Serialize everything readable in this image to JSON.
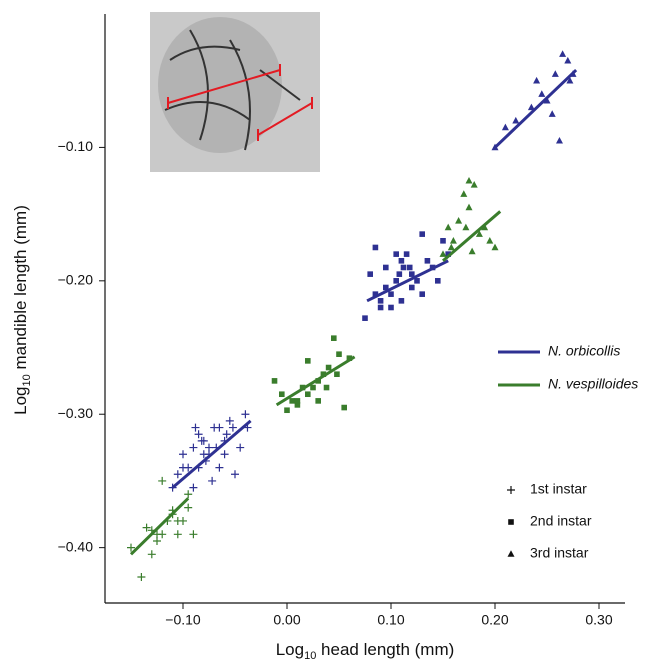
{
  "chart_data": {
    "type": "scatter",
    "xlabel": [
      "Log",
      "10",
      " head length (mm)"
    ],
    "ylabel": [
      "Log",
      "10",
      " mandible length (mm)"
    ],
    "xlim": [
      -0.175,
      0.325
    ],
    "ylim": [
      -0.44,
      0.0
    ],
    "xticks": [
      {
        "value": -0.1,
        "label": "−0.10"
      },
      {
        "value": 0.0,
        "label": "0.00"
      },
      {
        "value": 0.1,
        "label": "0.10"
      },
      {
        "value": 0.2,
        "label": "0.20"
      },
      {
        "value": 0.3,
        "label": "0.30"
      }
    ],
    "yticks": [
      {
        "value": -0.1,
        "label": "−0.10"
      },
      {
        "value": -0.2,
        "label": "−0.20"
      },
      {
        "value": -0.3,
        "label": "−0.30"
      },
      {
        "value": -0.4,
        "label": "−0.40"
      }
    ],
    "legend": {
      "lines": [
        {
          "name": "N. orbicollis",
          "color": "#2e3192"
        },
        {
          "name": "N. vespilloides",
          "color": "#3a7d2c"
        }
      ],
      "markers": [
        {
          "name": "1st instar",
          "marker": "plus"
        },
        {
          "name": "2nd instar",
          "marker": "square"
        },
        {
          "name": "3rd instar",
          "marker": "triangle"
        }
      ]
    },
    "series": [
      {
        "color": "#3a7d2c",
        "marker": "plus",
        "x": [
          -0.15,
          -0.14,
          -0.135,
          -0.13,
          -0.125,
          -0.12,
          -0.115,
          -0.11,
          -0.105,
          -0.1,
          -0.095,
          -0.09,
          -0.095,
          -0.12,
          -0.13,
          -0.105,
          -0.11,
          -0.125
        ],
        "y": [
          -0.4,
          -0.422,
          -0.385,
          -0.387,
          -0.395,
          -0.39,
          -0.38,
          -0.375,
          -0.38,
          -0.38,
          -0.37,
          -0.39,
          -0.36,
          -0.35,
          -0.405,
          -0.39,
          -0.372,
          -0.39
        ],
        "fit_x": [
          -0.15,
          -0.095
        ],
        "fit_y": [
          -0.405,
          -0.363
        ]
      },
      {
        "color": "#2e3192",
        "marker": "plus",
        "x": [
          -0.11,
          -0.105,
          -0.1,
          -0.095,
          -0.09,
          -0.088,
          -0.085,
          -0.082,
          -0.08,
          -0.078,
          -0.075,
          -0.072,
          -0.07,
          -0.068,
          -0.065,
          -0.06,
          -0.058,
          -0.055,
          -0.05,
          -0.045,
          -0.04,
          -0.038,
          -0.085,
          -0.09,
          -0.075,
          -0.065,
          -0.052,
          -0.1,
          -0.08,
          -0.06
        ],
        "y": [
          -0.355,
          -0.345,
          -0.33,
          -0.34,
          -0.325,
          -0.31,
          -0.315,
          -0.32,
          -0.32,
          -0.335,
          -0.33,
          -0.35,
          -0.31,
          -0.325,
          -0.34,
          -0.33,
          -0.315,
          -0.305,
          -0.345,
          -0.325,
          -0.3,
          -0.31,
          -0.34,
          -0.355,
          -0.325,
          -0.31,
          -0.31,
          -0.34,
          -0.33,
          -0.32
        ],
        "fit_x": [
          -0.11,
          -0.035
        ],
        "fit_y": [
          -0.355,
          -0.305
        ]
      },
      {
        "color": "#3a7d2c",
        "marker": "square",
        "x": [
          -0.012,
          -0.005,
          0.0,
          0.005,
          0.01,
          0.015,
          0.02,
          0.025,
          0.03,
          0.035,
          0.038,
          0.04,
          0.045,
          0.05,
          0.055,
          0.06,
          0.03,
          0.02,
          0.01,
          0.048
        ],
        "y": [
          -0.275,
          -0.285,
          -0.297,
          -0.29,
          -0.293,
          -0.28,
          -0.285,
          -0.28,
          -0.275,
          -0.27,
          -0.28,
          -0.265,
          -0.243,
          -0.255,
          -0.295,
          -0.258,
          -0.29,
          -0.26,
          -0.29,
          -0.27
        ],
        "fit_x": [
          -0.01,
          0.065
        ],
        "fit_y": [
          -0.293,
          -0.257
        ]
      },
      {
        "color": "#2e3192",
        "marker": "square",
        "x": [
          0.075,
          0.08,
          0.085,
          0.09,
          0.095,
          0.095,
          0.1,
          0.105,
          0.108,
          0.11,
          0.112,
          0.115,
          0.118,
          0.12,
          0.125,
          0.13,
          0.135,
          0.14,
          0.145,
          0.15,
          0.155,
          0.1,
          0.11,
          0.12,
          0.09,
          0.085,
          0.13,
          0.105
        ],
        "y": [
          -0.228,
          -0.195,
          -0.21,
          -0.22,
          -0.19,
          -0.205,
          -0.22,
          -0.2,
          -0.195,
          -0.185,
          -0.19,
          -0.18,
          -0.19,
          -0.205,
          -0.2,
          -0.21,
          -0.185,
          -0.19,
          -0.2,
          -0.17,
          -0.18,
          -0.21,
          -0.215,
          -0.195,
          -0.215,
          -0.175,
          -0.165,
          -0.18
        ],
        "fit_x": [
          0.077,
          0.155
        ],
        "fit_y": [
          -0.215,
          -0.185
        ]
      },
      {
        "color": "#3a7d2c",
        "marker": "triangle",
        "x": [
          0.15,
          0.155,
          0.158,
          0.16,
          0.165,
          0.17,
          0.172,
          0.175,
          0.178,
          0.18,
          0.185,
          0.19,
          0.195,
          0.2,
          0.175
        ],
        "y": [
          -0.18,
          -0.16,
          -0.175,
          -0.17,
          -0.155,
          -0.135,
          -0.16,
          -0.125,
          -0.178,
          -0.128,
          -0.165,
          -0.16,
          -0.17,
          -0.175,
          -0.145
        ],
        "fit_x": [
          0.15,
          0.205
        ],
        "fit_y": [
          -0.185,
          -0.148
        ]
      },
      {
        "color": "#2e3192",
        "marker": "triangle",
        "x": [
          0.2,
          0.21,
          0.22,
          0.235,
          0.24,
          0.245,
          0.25,
          0.258,
          0.262,
          0.265,
          0.27,
          0.272,
          0.275,
          0.255
        ],
        "y": [
          -0.1,
          -0.085,
          -0.08,
          -0.07,
          -0.05,
          -0.06,
          -0.065,
          -0.045,
          -0.095,
          -0.03,
          -0.035,
          -0.05,
          -0.045,
          -0.075
        ],
        "fit_x": [
          0.2,
          0.278
        ],
        "fit_y": [
          -0.1,
          -0.042
        ]
      }
    ]
  }
}
